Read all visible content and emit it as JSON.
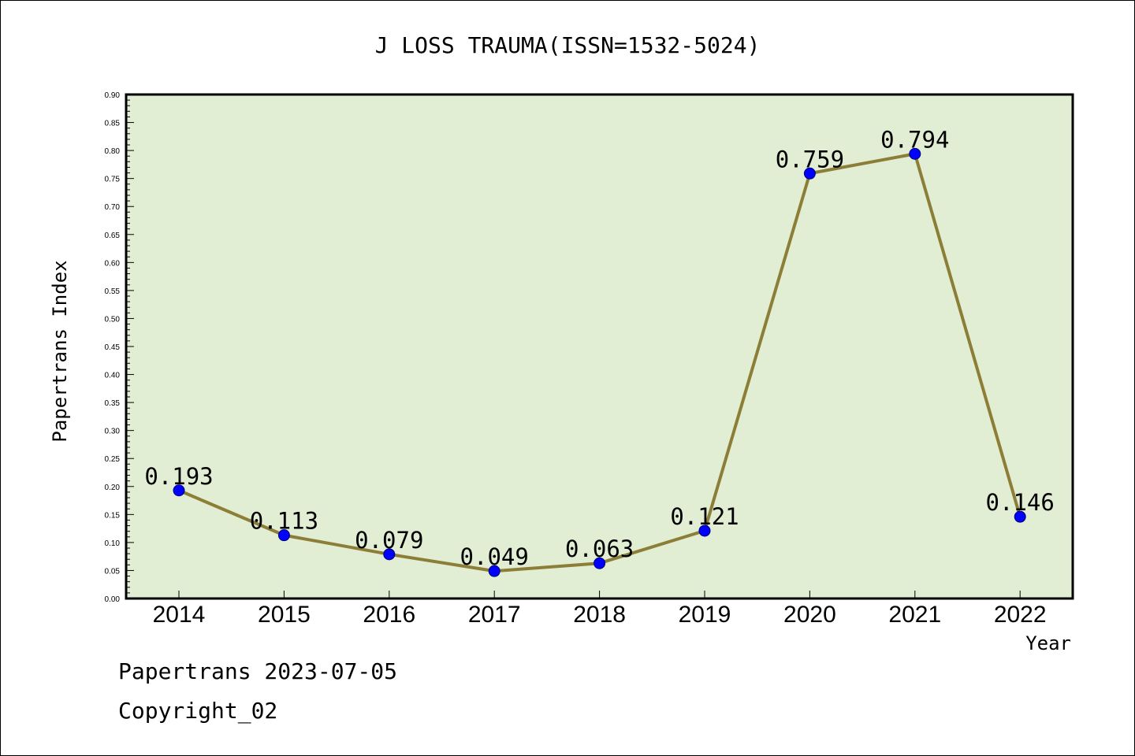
{
  "chart_data": {
    "type": "line",
    "title": "J LOSS TRAUMA(ISSN=1532-5024)",
    "xlabel": "Year",
    "ylabel": "Papertrans Index",
    "categories": [
      "2014",
      "2015",
      "2016",
      "2017",
      "2018",
      "2019",
      "2020",
      "2021",
      "2022"
    ],
    "values": [
      0.193,
      0.113,
      0.079,
      0.049,
      0.063,
      0.121,
      0.759,
      0.794,
      0.146
    ],
    "data_labels": [
      "0.193",
      "0.113",
      "0.079",
      "0.049",
      "0.063",
      "0.121",
      "0.759",
      "0.794",
      "0.146"
    ],
    "ylim": [
      0,
      0.9
    ],
    "yticks": [
      "0.00",
      "0.05",
      "0.10",
      "0.15",
      "0.20",
      "0.25",
      "0.30",
      "0.35",
      "0.40",
      "0.45",
      "0.50",
      "0.55",
      "0.60",
      "0.65",
      "0.70",
      "0.75",
      "0.80",
      "0.85",
      "0.90"
    ],
    "grid": false,
    "colors": {
      "plot_background": "#e1eed4",
      "line": "#8c7e37",
      "marker": "#0000ff"
    }
  },
  "footer": {
    "line1": "Papertrans 2023-07-05",
    "line2": "Copyright_02"
  }
}
